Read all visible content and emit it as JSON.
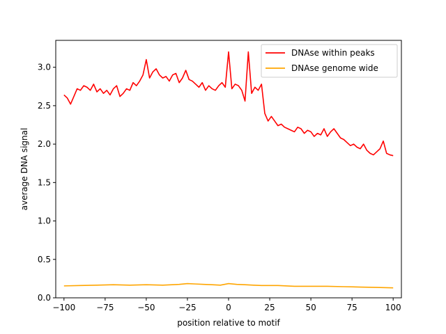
{
  "chart_data": {
    "type": "line",
    "title": "",
    "xlabel": "position relative to motif",
    "ylabel": "average DNA signal",
    "xlim": [
      -105,
      105
    ],
    "ylim": [
      -0.0,
      3.35
    ],
    "xticks": [
      -100,
      -75,
      -50,
      -25,
      0,
      25,
      50,
      75,
      100
    ],
    "xtick_labels": [
      "−100",
      "−75",
      "−50",
      "−25",
      "0",
      "25",
      "50",
      "75",
      "100"
    ],
    "yticks": [
      0.0,
      0.5,
      1.0,
      1.5,
      2.0,
      2.5,
      3.0
    ],
    "ytick_labels": [
      "0.0",
      "0.5",
      "1.0",
      "1.5",
      "2.0",
      "2.5",
      "3.0"
    ],
    "grid": false,
    "legend_position": "top-right",
    "series": [
      {
        "name": "DNAse within peaks",
        "color": "#ff0000",
        "x": [
          -100,
          -98,
          -96,
          -94,
          -92,
          -90,
          -88,
          -86,
          -84,
          -82,
          -80,
          -78,
          -76,
          -74,
          -72,
          -70,
          -68,
          -66,
          -64,
          -62,
          -60,
          -58,
          -56,
          -54,
          -52,
          -50,
          -48,
          -46,
          -44,
          -42,
          -40,
          -38,
          -36,
          -34,
          -32,
          -30,
          -28,
          -26,
          -24,
          -22,
          -20,
          -18,
          -16,
          -14,
          -12,
          -10,
          -8,
          -6,
          -4,
          -2,
          0,
          2,
          4,
          6,
          8,
          10,
          12,
          14,
          16,
          18,
          20,
          22,
          24,
          26,
          28,
          30,
          32,
          34,
          36,
          38,
          40,
          42,
          44,
          46,
          48,
          50,
          52,
          54,
          56,
          58,
          60,
          62,
          64,
          66,
          68,
          70,
          72,
          74,
          76,
          78,
          80,
          82,
          84,
          86,
          88,
          90,
          92,
          94,
          96,
          98,
          100
        ],
        "y": [
          2.64,
          2.6,
          2.52,
          2.62,
          2.72,
          2.7,
          2.76,
          2.74,
          2.7,
          2.78,
          2.68,
          2.72,
          2.66,
          2.7,
          2.64,
          2.72,
          2.76,
          2.62,
          2.66,
          2.72,
          2.7,
          2.8,
          2.76,
          2.82,
          2.9,
          3.1,
          2.86,
          2.94,
          2.98,
          2.9,
          2.86,
          2.88,
          2.82,
          2.9,
          2.92,
          2.8,
          2.86,
          2.96,
          2.84,
          2.82,
          2.78,
          2.74,
          2.8,
          2.7,
          2.76,
          2.72,
          2.7,
          2.76,
          2.8,
          2.74,
          3.2,
          2.72,
          2.78,
          2.76,
          2.7,
          2.56,
          3.2,
          2.66,
          2.74,
          2.7,
          2.78,
          2.4,
          2.3,
          2.36,
          2.3,
          2.24,
          2.26,
          2.22,
          2.2,
          2.18,
          2.16,
          2.22,
          2.2,
          2.14,
          2.18,
          2.16,
          2.1,
          2.14,
          2.12,
          2.2,
          2.1,
          2.16,
          2.2,
          2.14,
          2.08,
          2.06,
          2.02,
          1.98,
          2.0,
          1.96,
          1.94,
          2.0,
          1.92,
          1.88,
          1.86,
          1.9,
          1.94,
          2.04,
          1.88,
          1.86,
          1.85
        ]
      },
      {
        "name": "DNAse genome wide",
        "color": "#ffa500",
        "x": [
          -100,
          -90,
          -80,
          -70,
          -60,
          -50,
          -40,
          -30,
          -25,
          -20,
          -15,
          -10,
          -5,
          0,
          5,
          10,
          15,
          20,
          25,
          30,
          40,
          50,
          60,
          70,
          80,
          90,
          100
        ],
        "y": [
          0.155,
          0.16,
          0.165,
          0.17,
          0.165,
          0.17,
          0.165,
          0.175,
          0.185,
          0.18,
          0.175,
          0.17,
          0.165,
          0.185,
          0.175,
          0.17,
          0.165,
          0.16,
          0.16,
          0.16,
          0.15,
          0.15,
          0.15,
          0.145,
          0.14,
          0.135,
          0.13
        ]
      }
    ]
  }
}
